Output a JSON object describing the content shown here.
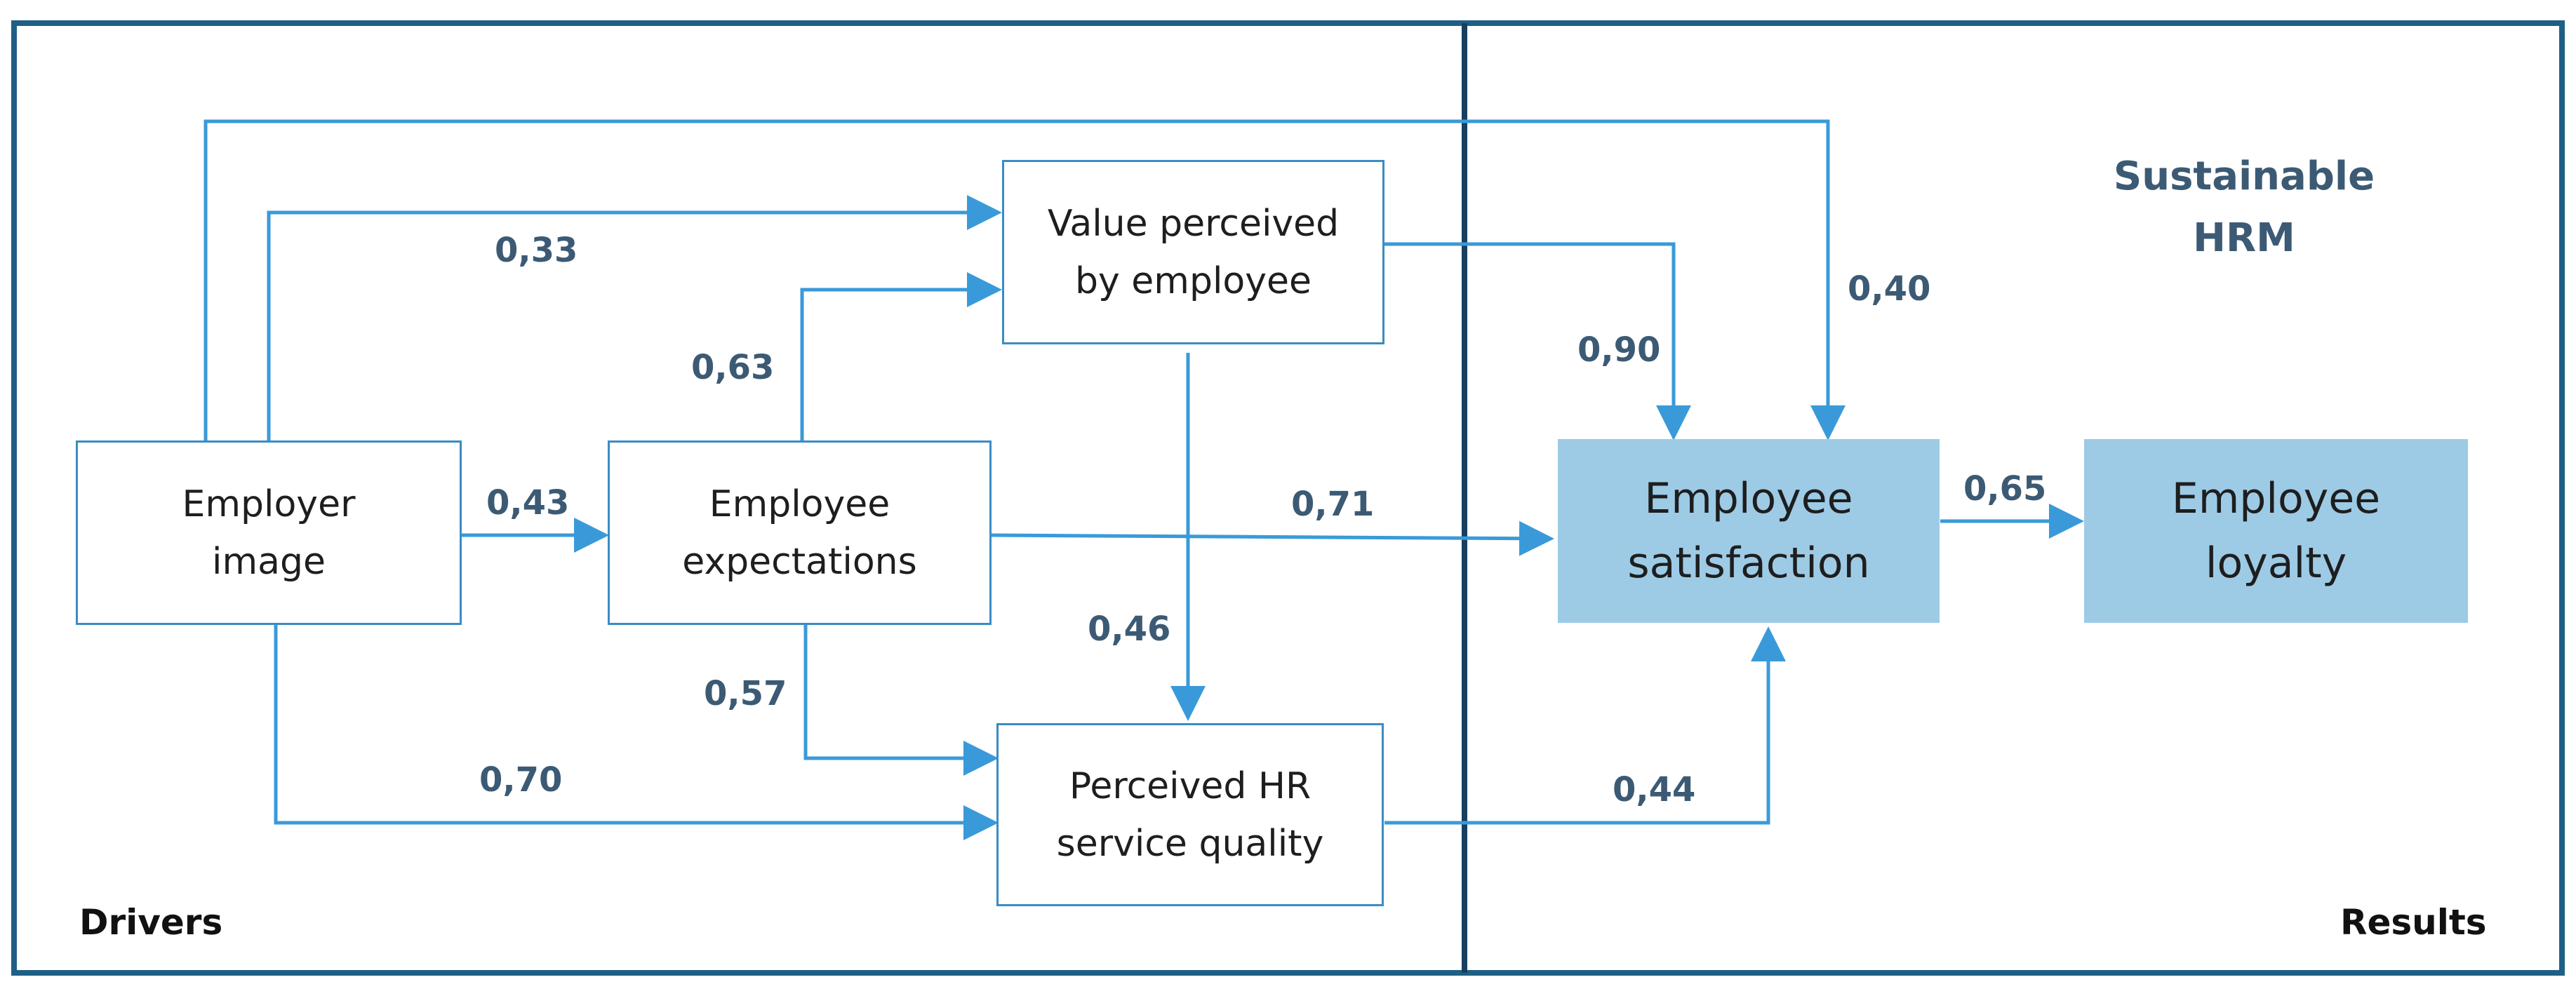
{
  "regions": {
    "drivers_label": "Drivers",
    "results_label": "Results",
    "sustainable_hrm_label": "Sustainable\nHRM"
  },
  "nodes": {
    "employer_image": "Employer\nimage",
    "employee_expectations": "Employee\nexpectations",
    "value_perceived": "Value perceived\nby employee",
    "perceived_hr_service_quality": "Perceived HR\nservice quality",
    "employee_satisfaction": "Employee\nsatisfaction",
    "employee_loyalty": "Employee\nloyalty"
  },
  "coefficients": {
    "image_to_value": "0,33",
    "expectations_to_value": "0,63",
    "image_to_expectations": "0,43",
    "expectations_to_satisfaction": "0,71",
    "value_to_quality": "0,46",
    "expectations_to_quality": "0,57",
    "image_to_quality": "0,70",
    "quality_to_satisfaction": "0,44",
    "value_to_satisfaction": "0,90",
    "image_to_satisfaction": "0,40",
    "satisfaction_to_loyalty": "0,65"
  },
  "colors": {
    "arrow": "#3a9ad9",
    "frame": "#1f5f85",
    "divider": "#173f5f",
    "result_fill": "#9dcbe6",
    "coefficient_text": "#3c5a74"
  }
}
